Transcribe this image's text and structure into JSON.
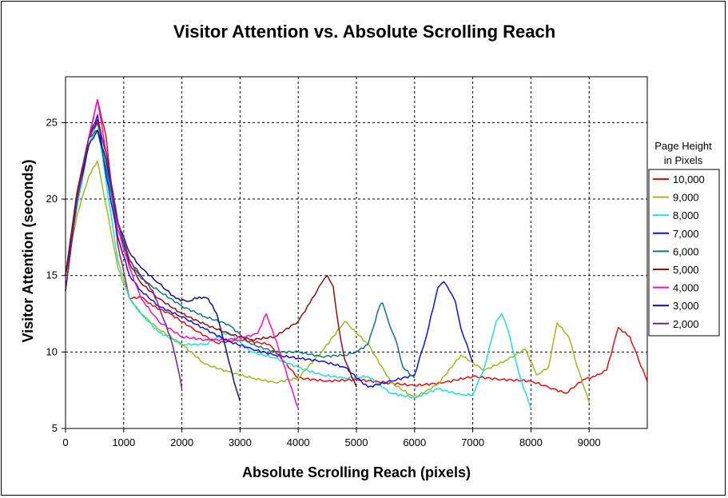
{
  "chart_data": {
    "type": "line",
    "title": "Visitor Attention vs. Absolute Scrolling Reach",
    "xlabel": "Absolute Scrolling Reach (pixels)",
    "ylabel": "Visitor Attention (seconds)",
    "xlim": [
      0,
      10000
    ],
    "ylim": [
      5,
      28
    ],
    "xticks": [
      0,
      1000,
      2000,
      3000,
      4000,
      5000,
      6000,
      7000,
      8000,
      9000
    ],
    "yticks": [
      5,
      10,
      15,
      20,
      25
    ],
    "grid": true,
    "legend": {
      "title_line1": "Page Height",
      "title_line2": "in Pixels",
      "placement": "right"
    },
    "series": [
      {
        "name": "10,000",
        "color": "#e01010",
        "x": [
          0,
          200,
          400,
          550,
          700,
          900,
          1100,
          1300,
          1500,
          1800,
          2200,
          2600,
          3000,
          3500,
          4000,
          4500,
          5000,
          5500,
          6000,
          6500,
          7000,
          7500,
          8000,
          8300,
          8600,
          8900,
          9100,
          9300,
          9500,
          9700,
          9850,
          10000
        ],
        "y": [
          15,
          20,
          24,
          26.5,
          24,
          17,
          13.5,
          13.6,
          13,
          12.5,
          11.5,
          10.6,
          10.8,
          10.5,
          8.3,
          8.1,
          8.2,
          8,
          7.8,
          8,
          8.4,
          8.2,
          8.1,
          7.7,
          7.3,
          8.2,
          8.4,
          8.8,
          11.6,
          11,
          9.5,
          8.1
        ]
      },
      {
        "name": "9,000",
        "color": "#99bb22",
        "x": [
          0,
          200,
          400,
          550,
          700,
          900,
          1100,
          1300,
          1600,
          2000,
          2400,
          2800,
          3200,
          3600,
          4000,
          4400,
          4800,
          5200,
          5600,
          6000,
          6400,
          6800,
          7200,
          7600,
          7900,
          8100,
          8300,
          8450,
          8650,
          8800,
          9000
        ],
        "y": [
          15,
          19,
          21.5,
          22.5,
          19.5,
          15.5,
          13.5,
          12.5,
          11.5,
          10.5,
          9.2,
          8.7,
          8.3,
          8,
          8.3,
          10,
          12,
          10.5,
          8,
          7,
          7.9,
          9.8,
          8.8,
          9.5,
          10.2,
          8.5,
          9,
          11.9,
          11,
          9,
          6.7
        ]
      },
      {
        "name": "8,000",
        "color": "#22dddd",
        "x": [
          0,
          200,
          400,
          550,
          700,
          900,
          1100,
          1300,
          1600,
          2000,
          2400,
          2800,
          3200,
          3600,
          4000,
          4400,
          4800,
          5200,
          5600,
          6000,
          6400,
          6800,
          7000,
          7200,
          7400,
          7500,
          7600,
          7800,
          8000
        ],
        "y": [
          15,
          19.5,
          23.5,
          25,
          21,
          16,
          13.5,
          12.5,
          11.3,
          10.5,
          10.5,
          11.3,
          10,
          9.6,
          9,
          8.5,
          8.3,
          8.4,
          7.3,
          7,
          7.6,
          7.2,
          7.2,
          9,
          12,
          12.5,
          11.5,
          8.5,
          6.3
        ]
      },
      {
        "name": "7,000",
        "color": "#1111dd",
        "x": [
          0,
          200,
          400,
          550,
          700,
          900,
          1100,
          1300,
          1600,
          2000,
          2400,
          2800,
          3200,
          3600,
          4000,
          4400,
          4800,
          5200,
          5600,
          6000,
          6200,
          6400,
          6500,
          6600,
          6700,
          6800,
          6900,
          7000
        ],
        "y": [
          15,
          20,
          24,
          25.5,
          21.5,
          17.5,
          15,
          14,
          13,
          12.3,
          11.5,
          10.7,
          10.2,
          9.8,
          9.6,
          9.4,
          9,
          7.7,
          8.1,
          8.5,
          11,
          14.2,
          14.6,
          14,
          13.3,
          11.5,
          10.5,
          9.3
        ]
      },
      {
        "name": "6,000",
        "color": "#117777",
        "x": [
          0,
          200,
          400,
          550,
          700,
          900,
          1100,
          1300,
          1600,
          2000,
          2400,
          2800,
          3200,
          3600,
          4000,
          4400,
          4800,
          5000,
          5200,
          5400,
          5450,
          5550,
          5700,
          5800,
          6000
        ],
        "y": [
          15,
          20.5,
          24,
          24.5,
          22,
          18,
          16,
          14.8,
          14,
          13,
          12.3,
          11.8,
          10.5,
          10,
          10,
          9.7,
          9.8,
          10,
          10.5,
          13,
          13.2,
          12,
          10.5,
          9,
          8.3
        ]
      },
      {
        "name": "5,000",
        "color": "#881111",
        "x": [
          0,
          200,
          400,
          550,
          700,
          900,
          1100,
          1300,
          1600,
          2000,
          2400,
          2800,
          3200,
          3600,
          4000,
          4200,
          4400,
          4500,
          4600,
          4700,
          4800,
          5000
        ],
        "y": [
          15,
          20.5,
          24,
          25.2,
          23,
          18.5,
          15.8,
          14.5,
          13.5,
          12.5,
          11.8,
          11.2,
          10.8,
          11,
          12,
          13.2,
          14.5,
          15,
          14.3,
          11.5,
          9.5,
          7.7
        ]
      },
      {
        "name": "4,000",
        "color": "#ee11cc",
        "x": [
          0,
          200,
          400,
          550,
          700,
          900,
          1100,
          1300,
          1600,
          2000,
          2400,
          2800,
          3100,
          3300,
          3450,
          3550,
          3700,
          3850,
          4000
        ],
        "y": [
          14,
          20,
          24,
          26.5,
          23,
          18,
          15.5,
          13.5,
          12,
          11,
          10.8,
          10.8,
          11,
          11.2,
          12.5,
          11.5,
          9.8,
          8,
          6.3
        ]
      },
      {
        "name": "3,000",
        "color": "#111177",
        "x": [
          0,
          200,
          400,
          550,
          700,
          900,
          1100,
          1300,
          1600,
          1900,
          2100,
          2300,
          2450,
          2600,
          2700,
          2800,
          2900,
          3000
        ],
        "y": [
          14,
          20,
          23.5,
          24.5,
          22.5,
          18.5,
          16.5,
          15.5,
          14.5,
          13.5,
          13.3,
          13.6,
          13.5,
          12.5,
          11,
          9.5,
          8,
          6.8
        ]
      },
      {
        "name": "2,000",
        "color": "#772288",
        "x": [
          0,
          200,
          400,
          550,
          700,
          900,
          1100,
          1300,
          1500,
          1650,
          1800,
          1900,
          2000
        ],
        "y": [
          14,
          20,
          24,
          25,
          23,
          18.5,
          16,
          15,
          14,
          12.5,
          11,
          9.5,
          7.6
        ]
      }
    ]
  }
}
